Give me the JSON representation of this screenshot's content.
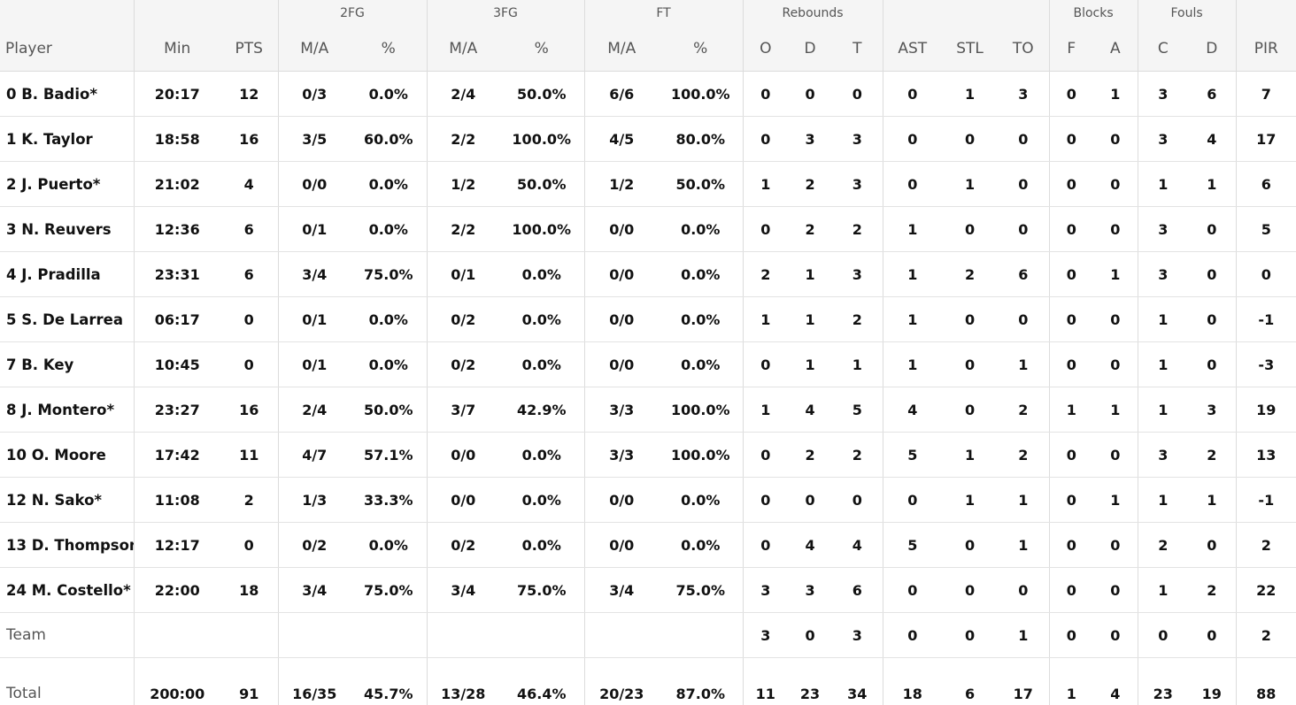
{
  "header": {
    "groups": [
      "2FG",
      "3FG",
      "FT",
      "Rebounds",
      "Blocks",
      "Fouls"
    ],
    "columns": [
      "Player",
      "Min",
      "PTS",
      "M/A",
      "%",
      "M/A",
      "%",
      "M/A",
      "%",
      "O",
      "D",
      "T",
      "AST",
      "STL",
      "TO",
      "F",
      "A",
      "C",
      "D",
      "PIR"
    ]
  },
  "players": [
    {
      "num": "0",
      "name": "B. Badio*",
      "min": "20:17",
      "pts": "12",
      "fg2": "0/3",
      "fg2p": "0.0%",
      "fg3": "2/4",
      "fg3p": "50.0%",
      "ft": "6/6",
      "ftp": "100.0%",
      "o": "0",
      "d": "0",
      "t": "0",
      "ast": "0",
      "stl": "1",
      "to": "3",
      "bf": "0",
      "ba": "1",
      "fc": "3",
      "fd": "6",
      "pir": "7"
    },
    {
      "num": "1",
      "name": "K. Taylor",
      "min": "18:58",
      "pts": "16",
      "fg2": "3/5",
      "fg2p": "60.0%",
      "fg3": "2/2",
      "fg3p": "100.0%",
      "ft": "4/5",
      "ftp": "80.0%",
      "o": "0",
      "d": "3",
      "t": "3",
      "ast": "0",
      "stl": "0",
      "to": "0",
      "bf": "0",
      "ba": "0",
      "fc": "3",
      "fd": "4",
      "pir": "17"
    },
    {
      "num": "2",
      "name": "J. Puerto*",
      "min": "21:02",
      "pts": "4",
      "fg2": "0/0",
      "fg2p": "0.0%",
      "fg3": "1/2",
      "fg3p": "50.0%",
      "ft": "1/2",
      "ftp": "50.0%",
      "o": "1",
      "d": "2",
      "t": "3",
      "ast": "0",
      "stl": "1",
      "to": "0",
      "bf": "0",
      "ba": "0",
      "fc": "1",
      "fd": "1",
      "pir": "6"
    },
    {
      "num": "3",
      "name": "N. Reuvers",
      "min": "12:36",
      "pts": "6",
      "fg2": "0/1",
      "fg2p": "0.0%",
      "fg3": "2/2",
      "fg3p": "100.0%",
      "ft": "0/0",
      "ftp": "0.0%",
      "o": "0",
      "d": "2",
      "t": "2",
      "ast": "1",
      "stl": "0",
      "to": "0",
      "bf": "0",
      "ba": "0",
      "fc": "3",
      "fd": "0",
      "pir": "5"
    },
    {
      "num": "4",
      "name": "J. Pradilla",
      "min": "23:31",
      "pts": "6",
      "fg2": "3/4",
      "fg2p": "75.0%",
      "fg3": "0/1",
      "fg3p": "0.0%",
      "ft": "0/0",
      "ftp": "0.0%",
      "o": "2",
      "d": "1",
      "t": "3",
      "ast": "1",
      "stl": "2",
      "to": "6",
      "bf": "0",
      "ba": "1",
      "fc": "3",
      "fd": "0",
      "pir": "0"
    },
    {
      "num": "5",
      "name": "S. De Larrea",
      "min": "06:17",
      "pts": "0",
      "fg2": "0/1",
      "fg2p": "0.0%",
      "fg3": "0/2",
      "fg3p": "0.0%",
      "ft": "0/0",
      "ftp": "0.0%",
      "o": "1",
      "d": "1",
      "t": "2",
      "ast": "1",
      "stl": "0",
      "to": "0",
      "bf": "0",
      "ba": "0",
      "fc": "1",
      "fd": "0",
      "pir": "-1"
    },
    {
      "num": "7",
      "name": "B. Key",
      "min": "10:45",
      "pts": "0",
      "fg2": "0/1",
      "fg2p": "0.0%",
      "fg3": "0/2",
      "fg3p": "0.0%",
      "ft": "0/0",
      "ftp": "0.0%",
      "o": "0",
      "d": "1",
      "t": "1",
      "ast": "1",
      "stl": "0",
      "to": "1",
      "bf": "0",
      "ba": "0",
      "fc": "1",
      "fd": "0",
      "pir": "-3"
    },
    {
      "num": "8",
      "name": "J. Montero*",
      "min": "23:27",
      "pts": "16",
      "fg2": "2/4",
      "fg2p": "50.0%",
      "fg3": "3/7",
      "fg3p": "42.9%",
      "ft": "3/3",
      "ftp": "100.0%",
      "o": "1",
      "d": "4",
      "t": "5",
      "ast": "4",
      "stl": "0",
      "to": "2",
      "bf": "1",
      "ba": "1",
      "fc": "1",
      "fd": "3",
      "pir": "19"
    },
    {
      "num": "10",
      "name": "O. Moore",
      "min": "17:42",
      "pts": "11",
      "fg2": "4/7",
      "fg2p": "57.1%",
      "fg3": "0/0",
      "fg3p": "0.0%",
      "ft": "3/3",
      "ftp": "100.0%",
      "o": "0",
      "d": "2",
      "t": "2",
      "ast": "5",
      "stl": "1",
      "to": "2",
      "bf": "0",
      "ba": "0",
      "fc": "3",
      "fd": "2",
      "pir": "13"
    },
    {
      "num": "12",
      "name": "N. Sako*",
      "min": "11:08",
      "pts": "2",
      "fg2": "1/3",
      "fg2p": "33.3%",
      "fg3": "0/0",
      "fg3p": "0.0%",
      "ft": "0/0",
      "ftp": "0.0%",
      "o": "0",
      "d": "0",
      "t": "0",
      "ast": "0",
      "stl": "1",
      "to": "1",
      "bf": "0",
      "ba": "1",
      "fc": "1",
      "fd": "1",
      "pir": "-1"
    },
    {
      "num": "13",
      "name": "D. Thompson",
      "min": "12:17",
      "pts": "0",
      "fg2": "0/2",
      "fg2p": "0.0%",
      "fg3": "0/2",
      "fg3p": "0.0%",
      "ft": "0/0",
      "ftp": "0.0%",
      "o": "0",
      "d": "4",
      "t": "4",
      "ast": "5",
      "stl": "0",
      "to": "1",
      "bf": "0",
      "ba": "0",
      "fc": "2",
      "fd": "0",
      "pir": "2"
    },
    {
      "num": "24",
      "name": "M. Costello*",
      "min": "22:00",
      "pts": "18",
      "fg2": "3/4",
      "fg2p": "75.0%",
      "fg3": "3/4",
      "fg3p": "75.0%",
      "ft": "3/4",
      "ftp": "75.0%",
      "o": "3",
      "d": "3",
      "t": "6",
      "ast": "0",
      "stl": "0",
      "to": "0",
      "bf": "0",
      "ba": "0",
      "fc": "1",
      "fd": "2",
      "pir": "22"
    }
  ],
  "team": {
    "label": "Team",
    "o": "3",
    "d": "0",
    "t": "3",
    "ast": "0",
    "stl": "0",
    "to": "1",
    "bf": "0",
    "ba": "0",
    "fc": "0",
    "fd": "0",
    "pir": "2"
  },
  "total": {
    "label": "Total",
    "min": "200:00",
    "pts": "91",
    "fg2": "16/35",
    "fg2p": "45.7%",
    "fg3": "13/28",
    "fg3p": "46.4%",
    "ft": "20/23",
    "ftp": "87.0%",
    "o": "11",
    "d": "23",
    "t": "34",
    "ast": "18",
    "stl": "6",
    "to": "17",
    "bf": "1",
    "ba": "4",
    "fc": "23",
    "fd": "19",
    "pir": "88"
  }
}
